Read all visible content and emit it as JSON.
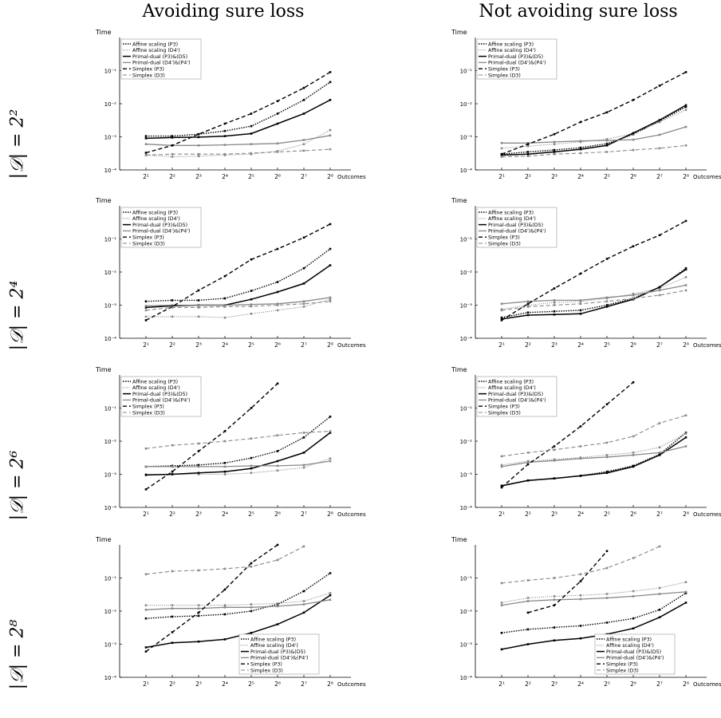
{
  "column_titles": [
    "Avoiding sure loss",
    "Not avoiding sure loss"
  ],
  "row_labels": [
    "|𝒟| = 2²",
    "|𝒟| = 2⁴",
    "|𝒟| = 2⁶",
    "|𝒟| = 2⁸"
  ],
  "series_styles": [
    {
      "dash": "1.5,1.5",
      "color": "#000000",
      "width": 1.4
    },
    {
      "dash": "1,1.5",
      "color": "#888888",
      "width": 1.1
    },
    {
      "dash": "",
      "color": "#000000",
      "width": 1.5
    },
    {
      "dash": "",
      "color": "#888888",
      "width": 1.3
    },
    {
      "dash": "5,3",
      "color": "#000000",
      "width": 1.4
    },
    {
      "dash": "5,3",
      "color": "#888888",
      "width": 1.1
    }
  ],
  "chart_data": [
    {
      "type": "line",
      "id": "r1c1",
      "ylabel": "Time",
      "xlabel": "Outcomes",
      "yscale": "log",
      "ylim": [
        0.0001,
        1
      ],
      "legend_position": "top-left",
      "y_ticks": [
        "10⁻⁴",
        "10⁻³",
        "10⁻²",
        "10⁻¹"
      ],
      "categories": [
        "2¹",
        "2²",
        "2³",
        "2⁴",
        "2⁵",
        "2⁶",
        "2⁷",
        "2⁸"
      ],
      "series": [
        {
          "name": "Affine scaling (P3)",
          "values": [
            0.00105,
            0.00105,
            0.0012,
            0.0015,
            0.0021,
            0.005,
            0.013,
            0.045
          ]
        },
        {
          "name": "Affine scaling (D4')",
          "values": [
            0.00028,
            0.00025,
            0.00026,
            0.00028,
            0.0003,
            0.00037,
            0.0006,
            0.0016
          ]
        },
        {
          "name": "Primal-dual (P3)&(D5)",
          "values": [
            0.0009,
            0.00095,
            0.00098,
            0.00105,
            0.00125,
            0.0025,
            0.005,
            0.013
          ]
        },
        {
          "name": "Primal-dual (D4')&(P4')",
          "values": [
            0.0006,
            0.00055,
            0.00055,
            0.00057,
            0.0006,
            0.00063,
            0.0008,
            0.0011
          ]
        },
        {
          "name": "Simplex (P3)",
          "values": [
            0.00033,
            0.00055,
            0.0012,
            0.0025,
            0.005,
            0.012,
            0.03,
            0.09
          ]
        },
        {
          "name": "Simplex (D3)",
          "values": [
            0.00028,
            0.0003,
            0.0003,
            0.0003,
            0.00032,
            0.00035,
            0.00038,
            0.00042
          ]
        }
      ]
    },
    {
      "type": "line",
      "id": "r1c2",
      "ylabel": "Time",
      "xlabel": "Outcomes",
      "yscale": "log",
      "ylim": [
        0.0001,
        1
      ],
      "legend_position": "top-left",
      "y_ticks": [
        "10⁻⁴",
        "10⁻³",
        "10⁻²",
        "10⁻¹"
      ],
      "categories": [
        "2¹",
        "2²",
        "2³",
        "2⁴",
        "2⁵",
        "2⁶",
        "2⁷",
        "2⁸"
      ],
      "series": [
        {
          "name": "Affine scaling (P3)",
          "values": [
            0.0003,
            0.00035,
            0.0004,
            0.00047,
            0.00062,
            0.0012,
            0.003,
            0.008
          ]
        },
        {
          "name": "Affine scaling (D4')",
          "values": [
            0.00045,
            0.00052,
            0.0006,
            0.0007,
            0.00085,
            0.00125,
            0.0028,
            0.0065
          ]
        },
        {
          "name": "Primal-dual (P3)&(D5)",
          "values": [
            0.00028,
            0.0003,
            0.00035,
            0.00042,
            0.00055,
            0.0013,
            0.0032,
            0.009
          ]
        },
        {
          "name": "Primal-dual (D4')&(P4')",
          "values": [
            0.00065,
            0.00065,
            0.0007,
            0.00075,
            0.00078,
            0.00082,
            0.00115,
            0.002
          ]
        },
        {
          "name": "Simplex (P3)",
          "values": [
            0.0003,
            0.0006,
            0.0012,
            0.0028,
            0.0055,
            0.013,
            0.035,
            0.09
          ]
        },
        {
          "name": "Simplex (D3)",
          "values": [
            0.00025,
            0.00026,
            0.0003,
            0.00032,
            0.00035,
            0.0004,
            0.00045,
            0.00055
          ]
        }
      ]
    },
    {
      "type": "line",
      "id": "r2c1",
      "ylabel": "Time",
      "xlabel": "Outcomes",
      "yscale": "log",
      "ylim": [
        0.0001,
        1
      ],
      "legend_position": "top-left",
      "y_ticks": [
        "10⁻⁴",
        "10⁻³",
        "10⁻²",
        "10⁻¹"
      ],
      "categories": [
        "2¹",
        "2²",
        "2³",
        "2⁴",
        "2⁵",
        "2⁶",
        "2⁷",
        "2⁸"
      ],
      "series": [
        {
          "name": "Affine scaling (P3)",
          "values": [
            0.0013,
            0.0014,
            0.0014,
            0.0016,
            0.0027,
            0.005,
            0.013,
            0.05
          ]
        },
        {
          "name": "Affine scaling (D4')",
          "values": [
            0.00045,
            0.00045,
            0.00045,
            0.00042,
            0.00055,
            0.0007,
            0.0009,
            0.0015
          ]
        },
        {
          "name": "Primal-dual (P3)&(D5)",
          "values": [
            0.00085,
            0.00095,
            0.001,
            0.001,
            0.0015,
            0.0025,
            0.0045,
            0.016
          ]
        },
        {
          "name": "Primal-dual (D4')&(P4')",
          "values": [
            0.00095,
            0.001,
            0.001,
            0.001,
            0.00105,
            0.0011,
            0.0013,
            0.0017
          ]
        },
        {
          "name": "Simplex (P3)",
          "values": [
            0.00035,
            0.0009,
            0.0028,
            0.0075,
            0.024,
            0.05,
            0.11,
            0.28
          ]
        },
        {
          "name": "Simplex (D3)",
          "values": [
            0.0007,
            0.00085,
            0.00085,
            0.0009,
            0.00092,
            0.001,
            0.0011,
            0.0013
          ]
        }
      ]
    },
    {
      "type": "line",
      "id": "r2c2",
      "ylabel": "Time",
      "xlabel": "Outcomes",
      "yscale": "log",
      "ylim": [
        0.0001,
        1
      ],
      "legend_position": "top-left",
      "y_ticks": [
        "10⁻⁴",
        "10⁻³",
        "10⁻²",
        "10⁻¹"
      ],
      "categories": [
        "2¹",
        "2²",
        "2³",
        "2⁴",
        "2⁵",
        "2⁶",
        "2⁷",
        "2⁸"
      ],
      "series": [
        {
          "name": "Affine scaling (P3)",
          "values": [
            0.00042,
            0.0006,
            0.00065,
            0.0007,
            0.001,
            0.0016,
            0.0035,
            0.013
          ]
        },
        {
          "name": "Affine scaling (D4')",
          "values": [
            0.00075,
            0.001,
            0.0012,
            0.0013,
            0.0016,
            0.0022,
            0.0032,
            0.007
          ]
        },
        {
          "name": "Primal-dual (P3)&(D5)",
          "values": [
            0.00038,
            0.0005,
            0.00052,
            0.00055,
            0.0009,
            0.0015,
            0.0035,
            0.012
          ]
        },
        {
          "name": "Primal-dual (D4')&(P4')",
          "values": [
            0.0011,
            0.0013,
            0.0014,
            0.0014,
            0.0017,
            0.002,
            0.0028,
            0.004
          ]
        },
        {
          "name": "Simplex (P3)",
          "values": [
            0.00035,
            0.0011,
            0.0032,
            0.009,
            0.025,
            0.06,
            0.13,
            0.35
          ]
        },
        {
          "name": "Simplex (D3)",
          "values": [
            0.0007,
            0.0009,
            0.001,
            0.0011,
            0.0013,
            0.0016,
            0.002,
            0.0028
          ]
        }
      ]
    },
    {
      "type": "line",
      "id": "r3c1",
      "ylabel": "Time",
      "xlabel": "Outcomes",
      "yscale": "log",
      "ylim": [
        0.0001,
        1
      ],
      "legend_position": "top-left",
      "y_ticks": [
        "10⁻⁴",
        "10⁻³",
        "10⁻²",
        "10⁻¹"
      ],
      "categories": [
        "2¹",
        "2²",
        "2³",
        "2⁴",
        "2⁵",
        "2⁶",
        "2⁷",
        "2⁸"
      ],
      "series": [
        {
          "name": "Affine scaling (P3)",
          "values": [
            0.0017,
            0.0018,
            0.0019,
            0.0022,
            0.0031,
            0.005,
            0.013,
            0.055
          ]
        },
        {
          "name": "Affine scaling (D4')",
          "values": [
            0.001,
            0.001,
            0.001,
            0.001,
            0.0011,
            0.0013,
            0.0016,
            0.003
          ]
        },
        {
          "name": "Primal-dual (P3)&(D5)",
          "values": [
            0.00095,
            0.001,
            0.0011,
            0.0012,
            0.0015,
            0.0025,
            0.0045,
            0.018
          ]
        },
        {
          "name": "Primal-dual (D4')&(P4')",
          "values": [
            0.0017,
            0.0017,
            0.0017,
            0.0017,
            0.0018,
            0.0018,
            0.0019,
            0.0025
          ]
        },
        {
          "name": "Simplex (P3)",
          "values": [
            0.00035,
            0.0012,
            0.005,
            0.02,
            0.1,
            0.55,
            null,
            null
          ]
        },
        {
          "name": "Simplex (D3)",
          "values": [
            0.006,
            0.0075,
            0.0085,
            0.01,
            0.012,
            0.015,
            0.018,
            0.02
          ]
        }
      ]
    },
    {
      "type": "line",
      "id": "r3c2",
      "ylabel": "Time",
      "xlabel": "Outcomes",
      "yscale": "log",
      "ylim": [
        0.0001,
        1
      ],
      "legend_position": "top-left",
      "y_ticks": [
        "10⁻⁴",
        "10⁻³",
        "10⁻²",
        "10⁻¹"
      ],
      "categories": [
        "2¹",
        "2²",
        "2³",
        "2⁴",
        "2⁵",
        "2⁶",
        "2⁷",
        "2⁸"
      ],
      "series": [
        {
          "name": "Affine scaling (P3)",
          "values": [
            0.00045,
            0.00065,
            0.00075,
            0.0009,
            0.0012,
            0.0018,
            0.004,
            0.018
          ]
        },
        {
          "name": "Affine scaling (D4')",
          "values": [
            0.0019,
            0.0025,
            0.0028,
            0.0032,
            0.0038,
            0.0045,
            0.0065,
            0.017
          ]
        },
        {
          "name": "Primal-dual (P3)&(D5)",
          "values": [
            0.00045,
            0.00065,
            0.00075,
            0.0009,
            0.0011,
            0.0017,
            0.0038,
            0.013
          ]
        },
        {
          "name": "Primal-dual (D4')&(P4')",
          "values": [
            0.0017,
            0.0023,
            0.0026,
            0.003,
            0.0033,
            0.0038,
            0.0045,
            0.007
          ]
        },
        {
          "name": "Simplex (P3)",
          "values": [
            0.0004,
            0.002,
            0.007,
            0.028,
            0.13,
            0.6,
            null,
            null
          ]
        },
        {
          "name": "Simplex (D3)",
          "values": [
            0.0035,
            0.0045,
            0.0055,
            0.007,
            0.009,
            0.014,
            0.035,
            0.06
          ]
        }
      ]
    },
    {
      "type": "line",
      "id": "r4c1",
      "ylabel": "Time",
      "xlabel": "Outcomes",
      "yscale": "log",
      "ylim": [
        0.0001,
        1
      ],
      "legend_position": "bottom-right",
      "y_ticks": [
        "10⁻⁴",
        "10⁻³",
        "10⁻²",
        "10⁻¹"
      ],
      "categories": [
        "2¹",
        "2²",
        "2³",
        "2⁴",
        "2⁵",
        "2⁶",
        "2⁷",
        "2⁸"
      ],
      "series": [
        {
          "name": "Affine scaling (P3)",
          "values": [
            0.006,
            0.0068,
            0.0072,
            0.008,
            0.01,
            0.016,
            0.04,
            0.14
          ]
        },
        {
          "name": "Affine scaling (D4')",
          "values": [
            0.015,
            0.015,
            0.015,
            0.015,
            0.016,
            0.017,
            0.02,
            0.035
          ]
        },
        {
          "name": "Primal-dual (P3)&(D5)",
          "values": [
            0.0008,
            0.0011,
            0.0012,
            0.0014,
            0.0022,
            0.004,
            0.009,
            0.03
          ]
        },
        {
          "name": "Primal-dual (D4')&(P4')",
          "values": [
            0.011,
            0.012,
            0.012,
            0.013,
            0.013,
            0.014,
            0.016,
            0.022
          ]
        },
        {
          "name": "Simplex (P3)",
          "values": [
            0.0006,
            0.0023,
            0.009,
            0.045,
            0.28,
            1.0,
            null,
            null
          ]
        },
        {
          "name": "Simplex (D3)",
          "values": [
            0.13,
            0.16,
            0.17,
            0.19,
            0.22,
            0.35,
            0.9,
            null
          ]
        }
      ]
    },
    {
      "type": "line",
      "id": "r4c2",
      "ylabel": "Time",
      "xlabel": "Outcomes",
      "yscale": "log",
      "ylim": [
        0.0001,
        1
      ],
      "legend_position": "bottom-right",
      "y_ticks": [
        "10⁻⁴",
        "10⁻³",
        "10⁻²",
        "10⁻¹"
      ],
      "categories": [
        "2¹",
        "2²",
        "2³",
        "2⁴",
        "2⁵",
        "2⁶",
        "2⁷",
        "2⁸"
      ],
      "series": [
        {
          "name": "Affine scaling (P3)",
          "values": [
            0.0022,
            0.0028,
            0.0032,
            0.0036,
            0.0045,
            0.006,
            0.011,
            0.035
          ]
        },
        {
          "name": "Affine scaling (D4')",
          "values": [
            0.018,
            0.025,
            0.028,
            0.03,
            0.033,
            0.04,
            0.05,
            0.075
          ]
        },
        {
          "name": "Primal-dual (P3)&(D5)",
          "values": [
            0.0007,
            0.001,
            0.0013,
            0.0015,
            0.002,
            0.003,
            0.0065,
            0.018
          ]
        },
        {
          "name": "Primal-dual (D4')&(P4')",
          "values": [
            0.015,
            0.02,
            0.022,
            0.023,
            0.025,
            0.028,
            0.033,
            0.038
          ]
        },
        {
          "name": "Simplex (P3)",
          "values": [
            null,
            0.009,
            0.015,
            0.08,
            0.65,
            null,
            null,
            null
          ]
        },
        {
          "name": "Simplex (D3)",
          "values": [
            0.07,
            0.085,
            0.1,
            0.13,
            0.2,
            0.4,
            0.9,
            null
          ]
        }
      ]
    }
  ]
}
